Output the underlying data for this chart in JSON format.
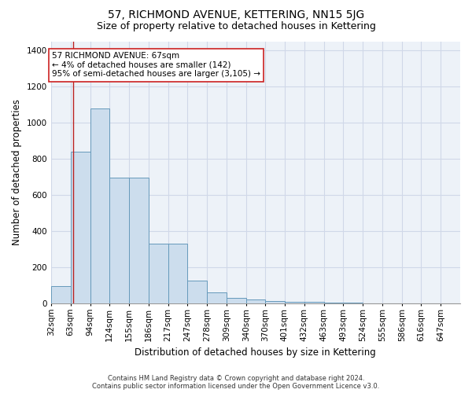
{
  "title": "57, RICHMOND AVENUE, KETTERING, NN15 5JG",
  "subtitle": "Size of property relative to detached houses in Kettering",
  "xlabel": "Distribution of detached houses by size in Kettering",
  "ylabel": "Number of detached properties",
  "bin_labels": [
    "32sqm",
    "63sqm",
    "94sqm",
    "124sqm",
    "155sqm",
    "186sqm",
    "217sqm",
    "247sqm",
    "278sqm",
    "309sqm",
    "340sqm",
    "370sqm",
    "401sqm",
    "432sqm",
    "463sqm",
    "493sqm",
    "524sqm",
    "555sqm",
    "586sqm",
    "616sqm",
    "647sqm"
  ],
  "bin_edges": [
    32,
    63,
    94,
    124,
    155,
    186,
    217,
    247,
    278,
    309,
    340,
    370,
    401,
    432,
    463,
    493,
    524,
    555,
    586,
    616,
    647
  ],
  "bar_values": [
    95,
    840,
    1080,
    695,
    695,
    330,
    330,
    125,
    60,
    30,
    20,
    15,
    10,
    10,
    5,
    3,
    2,
    2,
    1,
    1,
    0
  ],
  "bar_color": "#ccdded",
  "bar_edge_color": "#6699bb",
  "property_size": 67,
  "vline_color": "#bb2222",
  "annotation_text": "57 RICHMOND AVENUE: 67sqm\n← 4% of detached houses are smaller (142)\n95% of semi-detached houses are larger (3,105) →",
  "annotation_box_color": "#ffffff",
  "annotation_box_edge": "#cc2222",
  "ylim": [
    0,
    1450
  ],
  "yticks": [
    0,
    200,
    400,
    600,
    800,
    1000,
    1200,
    1400
  ],
  "grid_color": "#d0d8e8",
  "bg_color": "#edf2f8",
  "footer_text": "Contains HM Land Registry data © Crown copyright and database right 2024.\nContains public sector information licensed under the Open Government Licence v3.0.",
  "title_fontsize": 10,
  "subtitle_fontsize": 9,
  "axis_label_fontsize": 8.5,
  "tick_fontsize": 7.5,
  "anno_fontsize": 7.5
}
